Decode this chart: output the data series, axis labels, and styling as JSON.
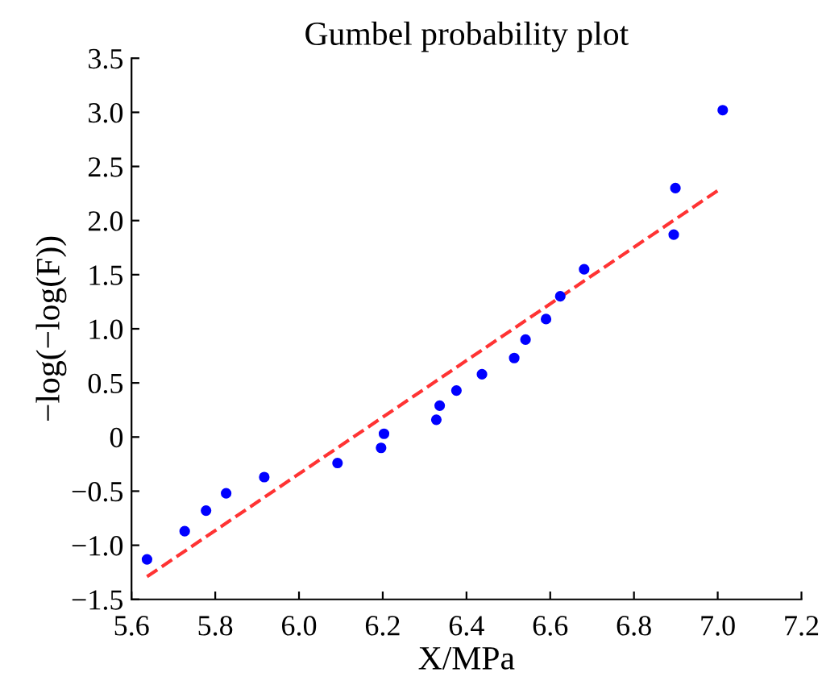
{
  "chart_data": {
    "type": "scatter",
    "title": "Gumbel probability plot",
    "xlabel": "X/MPa",
    "ylabel": "−log(−log(F))",
    "xlim": [
      5.6,
      7.2
    ],
    "xticks": [
      {
        "value": 5.6,
        "label": "5.6"
      },
      {
        "value": 5.8,
        "label": "5.8"
      },
      {
        "value": 6.0,
        "label": "6.0"
      },
      {
        "value": 6.2,
        "label": "6.2"
      },
      {
        "value": 6.4,
        "label": "6.4"
      },
      {
        "value": 6.6,
        "label": "6.6"
      },
      {
        "value": 6.8,
        "label": "6.8"
      },
      {
        "value": 7.0,
        "label": "7.0"
      },
      {
        "value": 7.2,
        "label": "7.2"
      }
    ],
    "ylim": [
      -1.5,
      3.5
    ],
    "yticks": [
      {
        "value": -1.5,
        "label": "−1.5"
      },
      {
        "value": -1.0,
        "label": "−1.0"
      },
      {
        "value": -0.5,
        "label": "−0.5"
      },
      0,
      {
        "value": 0.5,
        "label": "0.5"
      },
      {
        "value": 1.0,
        "label": "1.0"
      },
      {
        "value": 1.5,
        "label": "1.5"
      },
      {
        "value": 2.0,
        "label": "2.0"
      },
      {
        "value": 2.5,
        "label": "2.5"
      },
      {
        "value": 3.0,
        "label": "3.0"
      },
      {
        "value": 3.5,
        "label": "3.5"
      }
    ],
    "grid": false,
    "legend": false,
    "series": [
      {
        "color": "#0000ff",
        "marker": "circle",
        "x": [
          5.637,
          5.727,
          5.778,
          5.826,
          5.917,
          6.092,
          6.196,
          6.203,
          6.328,
          6.336,
          6.376,
          6.437,
          6.514,
          6.541,
          6.59,
          6.624,
          6.681,
          6.895,
          6.899,
          7.012
        ],
        "values": [
          -1.13,
          -0.87,
          -0.68,
          -0.52,
          -0.37,
          -0.24,
          -0.1,
          0.03,
          0.16,
          0.29,
          0.43,
          0.58,
          0.73,
          0.9,
          1.09,
          1.3,
          1.55,
          1.87,
          2.3,
          3.02
        ]
      },
      {
        "type": "line",
        "color": "#ff3333",
        "line_style": "dashed",
        "marker": "none",
        "x": [
          5.637,
          7.005
        ],
        "values": [
          -1.29,
          2.29
        ]
      }
    ]
  }
}
